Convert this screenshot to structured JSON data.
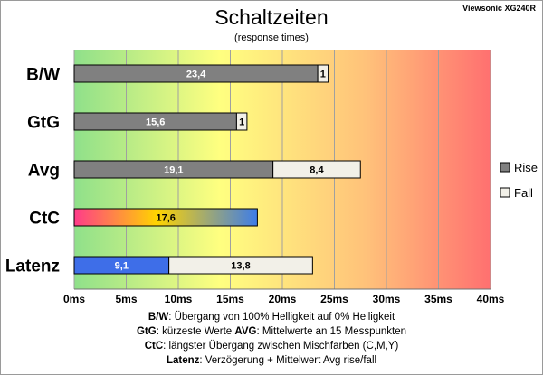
{
  "header": {
    "title": "Schaltzeiten",
    "subtitle": "(response times)",
    "model": "Viewsonic XG240R"
  },
  "notes": [
    {
      "key": "B/W",
      "text": ":  Übergang von 100% Helligkeit auf 0% Helligkeit"
    },
    {
      "key": "GtG",
      "text": ": kürzeste  Werte        ",
      "key2": "AVG",
      "text2": ": Mittelwerte  an 15 Messpunkten"
    },
    {
      "key": "CtC",
      "text": ": längster Übergang  zwischen Mischfarben (C,M,Y)"
    },
    {
      "key": "Latenz",
      "text": ": Verzögerung  + Mittelwert Avg rise/fall"
    }
  ],
  "chart_data": {
    "type": "bar",
    "orientation": "horizontal",
    "stacked": true,
    "categories": [
      "B/W",
      "GtG",
      "Avg",
      "CtC",
      "Latenz"
    ],
    "series": [
      {
        "name": "Rise",
        "values": [
          23.4,
          15.6,
          19.1,
          17.6,
          9.1
        ],
        "labels": [
          "23,4",
          "15,6",
          "19,1",
          "17,6",
          "9,1"
        ]
      },
      {
        "name": "Fall",
        "values": [
          1,
          1,
          8.4,
          null,
          13.8
        ],
        "labels": [
          "1",
          "1",
          "8,4",
          "",
          "13,8"
        ]
      }
    ],
    "xlim": [
      0,
      40
    ],
    "xticks": [
      "0ms",
      "5ms",
      "10ms",
      "15ms",
      "20ms",
      "25ms",
      "30ms",
      "35ms",
      "40ms"
    ],
    "grid": true,
    "legend": "right",
    "colors": {
      "rise": "#808080",
      "fall": "#f2f0e8",
      "ctc_gradient": [
        "#ff3b8a",
        "#ffd400",
        "#3e7de8"
      ],
      "latenz_rise": "#3e6ee8",
      "bg_gradient": [
        "#8fe08a",
        "#ffff80",
        "#ffc27a",
        "#ff7070"
      ]
    }
  }
}
